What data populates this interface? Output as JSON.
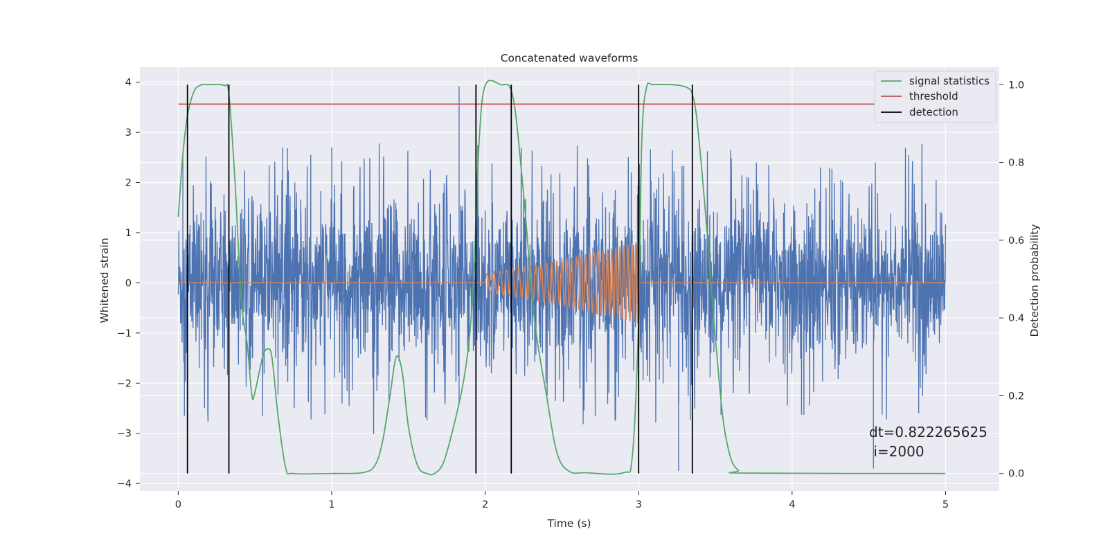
{
  "chart_data": {
    "type": "line",
    "title": "Concatenated waveforms",
    "xlabel": "Time (s)",
    "ylabel": "Whitened strain",
    "y2label": "Detection probability",
    "xlim": [
      -0.25,
      5.35
    ],
    "ylim": [
      -4.15,
      4.3
    ],
    "y2lim": [
      -0.045,
      1.045
    ],
    "xticks": [
      0,
      1,
      2,
      3,
      4,
      5
    ],
    "yticks": [
      -4,
      -3,
      -2,
      -1,
      0,
      1,
      2,
      3,
      4
    ],
    "y2ticks": [
      0.0,
      0.2,
      0.4,
      0.6,
      0.8,
      1.0
    ],
    "ytick_labels": [
      "−4",
      "−3",
      "−2",
      "−1",
      "0",
      "1",
      "2",
      "3",
      "4"
    ],
    "y2tick_labels": [
      "0.0",
      "0.2",
      "0.4",
      "0.6",
      "0.8",
      "1.0"
    ],
    "xtick_labels": [
      "0",
      "1",
      "2",
      "3",
      "4",
      "5"
    ],
    "grid": true,
    "legend_position": "top-right",
    "colors": {
      "background": "#eaeaf2",
      "grid": "#ffffff",
      "strain": "#4c72b0",
      "injection": "#dd8452",
      "signal_statistics": "#55a868",
      "threshold": "#c44e52",
      "detection": "#000000"
    },
    "series": [
      {
        "name": "",
        "kind": "whitened-strain-noise",
        "x_range": [
          0,
          5
        ],
        "typical_band": [
          -1.6,
          2.2
        ],
        "extremes": [
          [
            0.04,
            -2.65
          ],
          [
            0.03,
            2.62
          ],
          [
            1.83,
            3.92
          ],
          [
            1.83,
            -2.4
          ],
          [
            3.26,
            -3.75
          ],
          [
            4.53,
            -3.7
          ],
          [
            0.68,
            2.7
          ],
          [
            1.0,
            2.7
          ]
        ]
      },
      {
        "name": "",
        "kind": "injected-chirp",
        "x": [
          0.0,
          2.0,
          2.0,
          2.5,
          3.0,
          3.0,
          5.0
        ],
        "amplitude": [
          0.0,
          0.0,
          0.18,
          0.45,
          0.8,
          0.0,
          0.0
        ]
      },
      {
        "name": "signal statistics",
        "axis": "right",
        "x": [
          0.0,
          0.03,
          0.06,
          0.1,
          0.14,
          0.2,
          0.3,
          0.33,
          0.37,
          0.41,
          0.45,
          0.48,
          0.5,
          0.55,
          0.58,
          0.61,
          0.65,
          0.7,
          0.75,
          1.0,
          1.2,
          1.28,
          1.33,
          1.38,
          1.42,
          1.46,
          1.5,
          1.56,
          1.62,
          1.67,
          1.73,
          1.8,
          1.86,
          1.9,
          1.93,
          1.96,
          2.0,
          2.1,
          2.18,
          2.25,
          2.32,
          2.4,
          2.47,
          2.55,
          2.65,
          2.9,
          2.96,
          3.0,
          3.02,
          3.05,
          3.1,
          3.3,
          3.36,
          3.4,
          3.45,
          3.5,
          3.55,
          3.6,
          3.65,
          3.7,
          5.0
        ],
        "values": [
          0.66,
          0.82,
          0.92,
          0.98,
          0.998,
          1.0,
          0.998,
          0.975,
          0.75,
          0.45,
          0.33,
          0.2,
          0.21,
          0.3,
          0.32,
          0.3,
          0.15,
          0.015,
          0.0,
          0.0,
          0.002,
          0.02,
          0.08,
          0.2,
          0.3,
          0.26,
          0.12,
          0.02,
          0.0,
          0.0,
          0.03,
          0.13,
          0.24,
          0.36,
          0.55,
          0.85,
          0.998,
          1.0,
          0.97,
          0.72,
          0.4,
          0.2,
          0.05,
          0.005,
          0.002,
          0.002,
          0.05,
          0.4,
          0.85,
          0.99,
          1.0,
          0.995,
          0.96,
          0.83,
          0.6,
          0.35,
          0.14,
          0.04,
          0.008,
          0.001,
          0.0
        ]
      },
      {
        "name": "threshold",
        "axis": "right",
        "x": [
          0.0,
          5.0
        ],
        "values": [
          0.95,
          0.95
        ]
      },
      {
        "name": "detection",
        "axis": "right",
        "vertical_lines_x": [
          0.06,
          0.33,
          1.94,
          2.17,
          3.0,
          3.35
        ],
        "span": [
          0.0,
          1.0
        ]
      }
    ],
    "annotation": {
      "lines": [
        "dt=0.822265625",
        " i=2000"
      ],
      "x": 4.5,
      "y": -3.1
    }
  }
}
